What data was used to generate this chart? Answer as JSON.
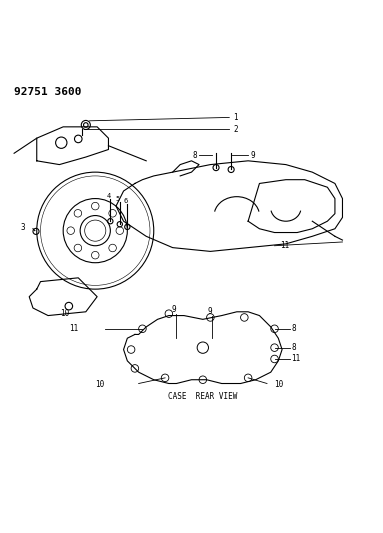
{
  "title": "92751 3600",
  "background_color": "#ffffff",
  "line_color": "#000000",
  "figsize": [
    3.83,
    5.33
  ],
  "dpi": 100,
  "case_rear_view_label": "CASE  REAR VIEW"
}
